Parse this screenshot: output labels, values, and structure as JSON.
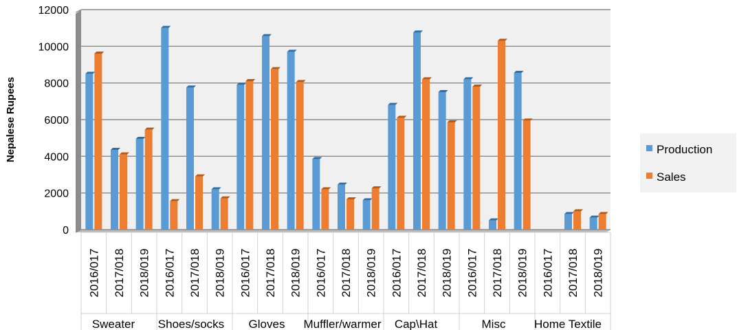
{
  "chart_data": {
    "type": "bar",
    "ylabel": "Nepalese Rupees",
    "ylim": [
      0,
      12000
    ],
    "yticks": [
      0,
      2000,
      4000,
      6000,
      8000,
      10000,
      12000
    ],
    "grid": true,
    "legend_position": "right",
    "groups": [
      "Sweater",
      "Shoes/socks",
      "Gloves",
      "Muffler/warmer",
      "Cap\\Hat",
      "Misc",
      "Home Textile"
    ],
    "years": [
      "2016/017",
      "2017/018",
      "2018/019"
    ],
    "categories": [
      "2016/017",
      "2017/018",
      "2018/019",
      "2016/017",
      "2017/018",
      "2018/019",
      "2016/017",
      "2017/018",
      "2018/019",
      "2016/017",
      "2017/018",
      "2018/019",
      "2016/017",
      "2017/018",
      "2018/019",
      "2016/017",
      "2017/018",
      "2018/019",
      "2016/017",
      "2017/018",
      "2018/019"
    ],
    "series": [
      {
        "name": "Production",
        "color": "#5B9BD5",
        "values": [
          8500,
          4350,
          4950,
          11000,
          7750,
          2200,
          7900,
          10550,
          9700,
          3850,
          2450,
          1600,
          6800,
          10750,
          7500,
          8200,
          500,
          8550,
          0,
          850,
          650
        ]
      },
      {
        "name": "Sales",
        "color": "#ED7D31",
        "values": [
          9600,
          4100,
          5450,
          1550,
          2900,
          1700,
          8100,
          8750,
          8050,
          2200,
          1650,
          2250,
          6100,
          8200,
          5850,
          7800,
          10300,
          5950,
          0,
          1000,
          850
        ]
      }
    ]
  }
}
